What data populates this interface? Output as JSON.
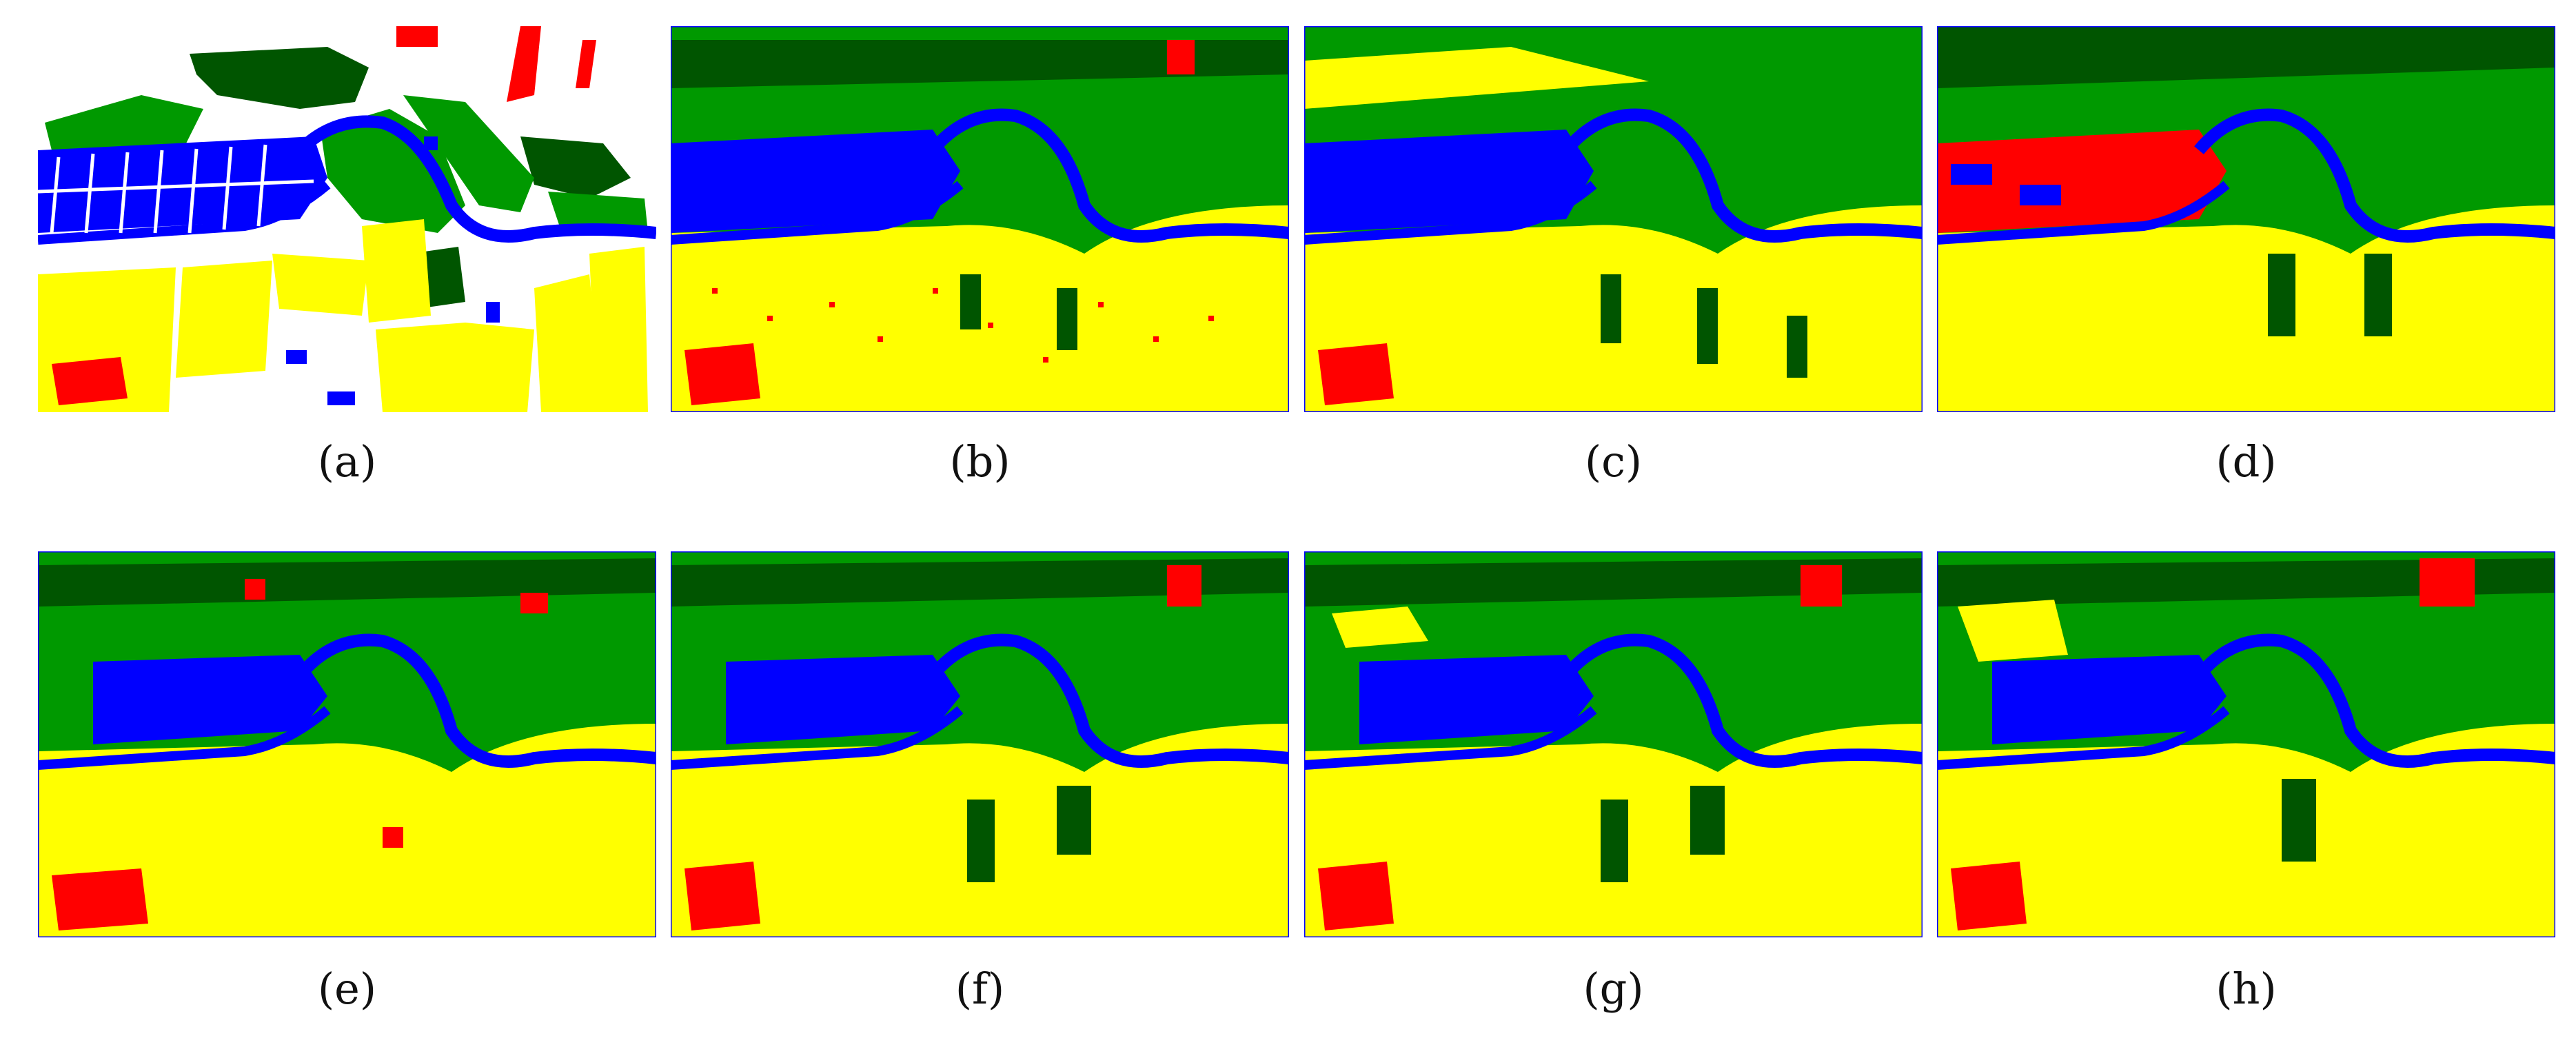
{
  "colors": {
    "water": "#0000ff",
    "light_vegetation": "#009900",
    "dark_vegetation": "#005500",
    "crop_yellow": "#ffff00",
    "urban_red": "#ff0000",
    "unlabeled": "#ffffff"
  },
  "panels": [
    {
      "id": "a",
      "caption": "(a)",
      "style": "ground-truth"
    },
    {
      "id": "b",
      "caption": "(b)",
      "style": "noisy-classification"
    },
    {
      "id": "c",
      "caption": "(c)",
      "style": "noisy-classification"
    },
    {
      "id": "d",
      "caption": "(d)",
      "style": "smooth-classification"
    },
    {
      "id": "e",
      "caption": "(e)",
      "style": "noisy-classification"
    },
    {
      "id": "f",
      "caption": "(f)",
      "style": "smooth-classification"
    },
    {
      "id": "g",
      "caption": "(g)",
      "style": "smooth-classification"
    },
    {
      "id": "h",
      "caption": "(h)",
      "style": "smooth-classification"
    }
  ]
}
